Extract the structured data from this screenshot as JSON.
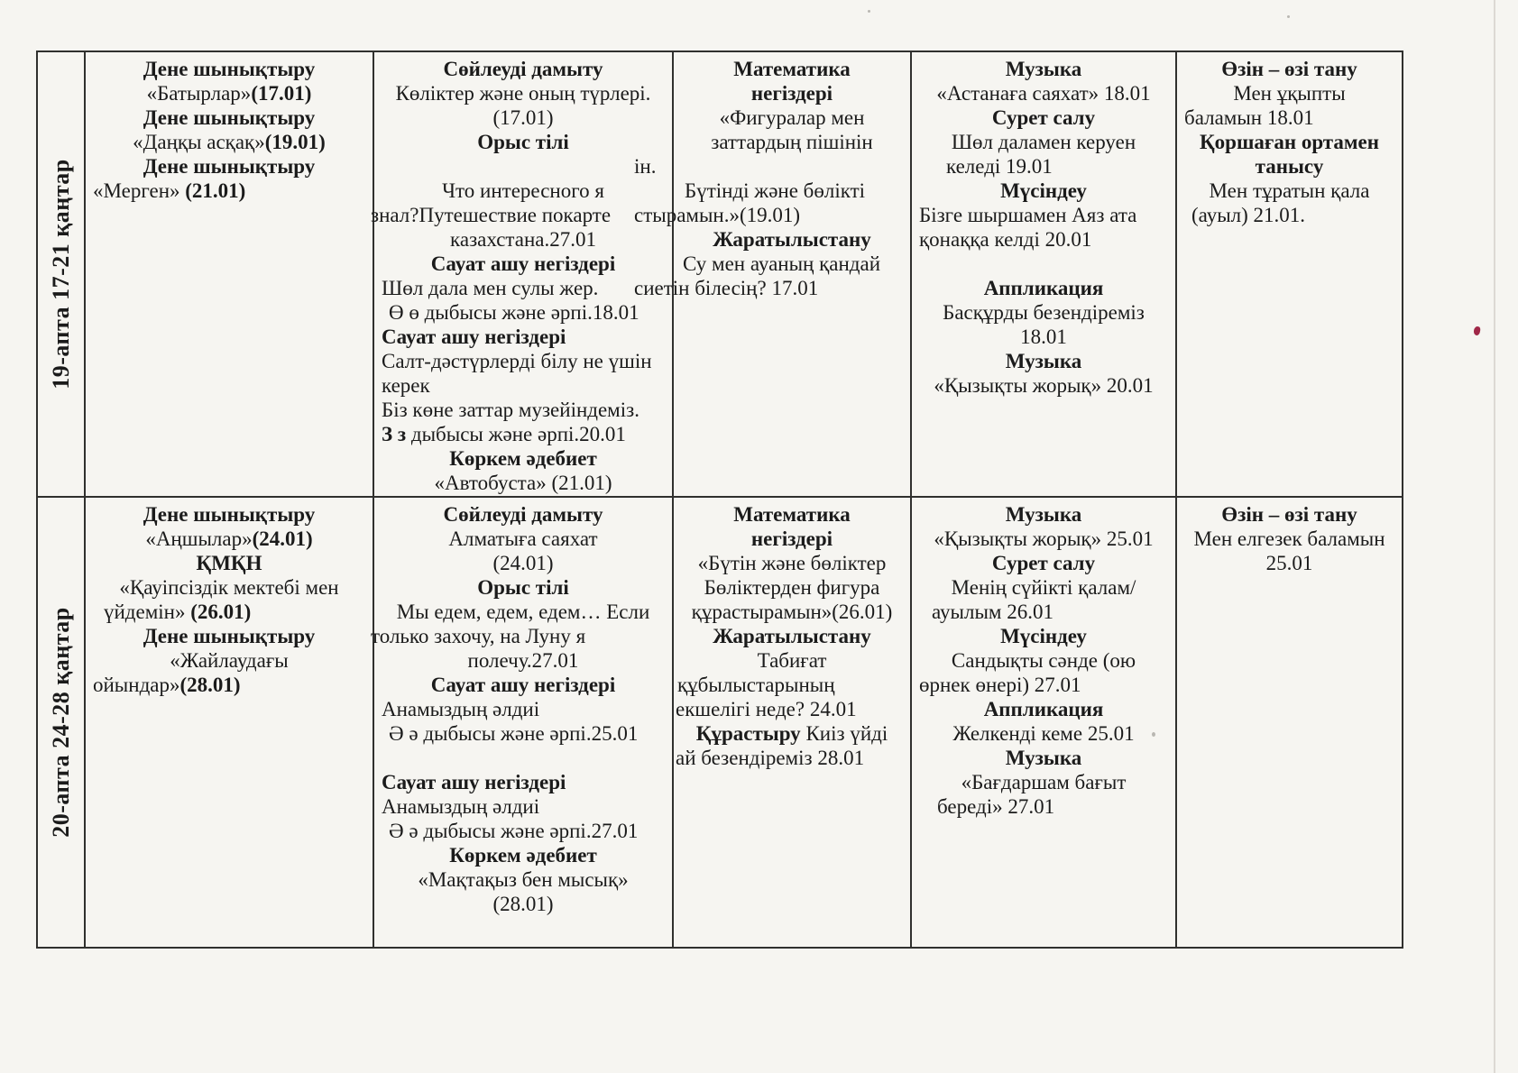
{
  "colors": {
    "paper": "#f6f5f1",
    "ink": "#1b1b1b",
    "line": "#30302e",
    "red_mark": "#a02848"
  },
  "table": {
    "rows": [
      {
        "week_label": "19-апта 17-21 қаңтар",
        "cells": [
          {
            "lines": [
              {
                "text": "Дене шынықтыру",
                "bold": true,
                "align": "center"
              },
              {
                "segments": [
                  {
                    "text": "«Батырлар»",
                    "bold": false
                  },
                  {
                    "text": "(17.01)",
                    "bold": true
                  }
                ],
                "align": "center"
              },
              {
                "text": "Дене шынықтыру",
                "bold": true,
                "align": "center"
              },
              {
                "segments": [
                  {
                    "text": "«Даңқы асқақ»",
                    "bold": false
                  },
                  {
                    "text": "(19.01)",
                    "bold": true
                  }
                ],
                "align": "center"
              },
              {
                "text": "Дене шынықтыру",
                "bold": true,
                "align": "center"
              },
              {
                "segments": [
                  {
                    "text": "«Мерген» ",
                    "bold": false
                  },
                  {
                    "text": "(21.01)",
                    "bold": true
                  }
                ],
                "align": "left"
              }
            ]
          },
          {
            "lines": [
              {
                "text": "Сөйлеуді дамыту",
                "bold": true,
                "align": "center"
              },
              {
                "text": "Көліктер және оның түрлері.",
                "align": "center"
              },
              {
                "text": "(17.01)",
                "align": "center"
              },
              {
                "text": "Орыс тілі",
                "bold": true,
                "align": "center"
              },
              {
                "text": ""
              },
              {
                "text": "Что интересного я",
                "align": "center"
              },
              {
                "text": "знал?Путешествие покарте",
                "align": "left",
                "indent": -12
              },
              {
                "text": "казахстана.27.01",
                "align": "center"
              },
              {
                "text": "Сауат ашу негіздері",
                "bold": true,
                "align": "center"
              },
              {
                "text": "Шөл дала мен сулы жер.",
                "align": "left"
              },
              {
                "text": "Ө ө дыбысы және әрпі.18.01",
                "align": "left",
                "indent": 8
              },
              {
                "text": "Сауат ашу негіздері",
                "bold": true,
                "align": "left"
              },
              {
                "text": "Салт-дәстүрлерді білу не үшін",
                "align": "left"
              },
              {
                "text": "керек",
                "align": "left"
              },
              {
                "text": "Біз көне заттар музейіндеміз.",
                "align": "left"
              },
              {
                "segments": [
                  {
                    "text": "З з",
                    "bold": true
                  },
                  {
                    "text": " дыбысы және әрпі.20.01",
                    "bold": false
                  }
                ],
                "align": "left"
              },
              {
                "text": "Көркем әдебиет",
                "bold": true,
                "align": "center"
              },
              {
                "text": "«Автобуста» (21.01)",
                "align": "center"
              }
            ]
          },
          {
            "lines": [
              {
                "text": "Математика",
                "bold": true,
                "align": "center"
              },
              {
                "text": "негіздері",
                "bold": true,
                "align": "center"
              },
              {
                "text": "«Фигуралар мен",
                "align": "center"
              },
              {
                "text": "заттардың пішінін",
                "align": "center"
              },
              {
                "text": "ін.",
                "align": "left",
                "indent": -52
              },
              {
                "text": "Бүтінді және бөлікті",
                "align": "left",
                "indent": 4
              },
              {
                "text": "стырамын.»(19.01)",
                "align": "left",
                "indent": -52
              },
              {
                "text": "Жаратылыстану",
                "bold": true,
                "align": "center"
              },
              {
                "text": "Су мен ауаның қандай",
                "align": "left",
                "indent": 2
              },
              {
                "text": "сиетін білесің? 17.01",
                "align": "left",
                "indent": -52
              }
            ]
          },
          {
            "lines": [
              {
                "text": "Музыка",
                "bold": true,
                "align": "center"
              },
              {
                "text": "«Астанаға саяхат» 18.01",
                "align": "center"
              },
              {
                "text": "Сурет салу",
                "bold": true,
                "align": "center"
              },
              {
                "text": "Шөл даламен керуен",
                "align": "center"
              },
              {
                "text": "келеді 19.01",
                "align": "left",
                "indent": 30
              },
              {
                "text": "Мүсіндеу",
                "bold": true,
                "align": "center"
              },
              {
                "text": "Бізге шыршамен Аяз ата",
                "align": "left"
              },
              {
                "text": "қонаққа келді 20.01",
                "align": "left"
              },
              {
                "text": ""
              },
              {
                "text": "Аппликация",
                "bold": true,
                "align": "center"
              },
              {
                "text": "Басқұрды безендіреміз",
                "align": "center"
              },
              {
                "text": "18.01",
                "align": "center"
              },
              {
                "text": "Музыка",
                "bold": true,
                "align": "center"
              },
              {
                "text": "«Қызықты жорық» 20.01",
                "align": "center"
              }
            ]
          },
          {
            "lines": [
              {
                "text": "Өзін – өзі тану",
                "bold": true,
                "align": "center"
              },
              {
                "text": "Мен ұқыпты",
                "align": "center"
              },
              {
                "text": "баламын  18.01",
                "align": "left"
              },
              {
                "text": "Қоршаған ортамен",
                "bold": true,
                "align": "center"
              },
              {
                "text": "танысу",
                "bold": true,
                "align": "center"
              },
              {
                "text": "Мен тұратын қала",
                "align": "center"
              },
              {
                "text": "(ауыл) 21.01.",
                "align": "left",
                "indent": 8
              }
            ]
          }
        ]
      },
      {
        "week_label": "20-апта 24-28 қаңтар",
        "cells": [
          {
            "lines": [
              {
                "text": "Дене шынықтыру",
                "bold": true,
                "align": "center"
              },
              {
                "segments": [
                  {
                    "text": "«Аңшылар»",
                    "bold": false
                  },
                  {
                    "text": "(24.01)",
                    "bold": true
                  }
                ],
                "align": "center"
              },
              {
                "text": "ҚМҚН",
                "bold": true,
                "align": "center"
              },
              {
                "text": "«Қауіпсіздік мектебі мен",
                "align": "center"
              },
              {
                "segments": [
                  {
                    "text": "үйдемін» ",
                    "bold": false
                  },
                  {
                    "text": "(26.01)",
                    "bold": true
                  }
                ],
                "align": "left",
                "indent": 12
              },
              {
                "text": "Дене шынықтыру",
                "bold": true,
                "align": "center"
              },
              {
                "text": "«Жайлаудағы",
                "align": "center"
              },
              {
                "segments": [
                  {
                    "text": "ойындар»",
                    "bold": false
                  },
                  {
                    "text": "(28.01)",
                    "bold": true
                  }
                ],
                "align": "left"
              }
            ]
          },
          {
            "lines": [
              {
                "text": "Сөйлеуді дамыту",
                "bold": true,
                "align": "center"
              },
              {
                "text": "Алматыға саяхат",
                "align": "center"
              },
              {
                "text": "(24.01)",
                "align": "center"
              },
              {
                "text": "Орыс тілі",
                "bold": true,
                "align": "center"
              },
              {
                "text": "Мы едем, едем, едем… Если",
                "align": "center"
              },
              {
                "text": "только захочу, на Луну я",
                "align": "left",
                "indent": -12
              },
              {
                "text": "полечу.27.01",
                "align": "center"
              },
              {
                "text": "Сауат ашу негіздері",
                "bold": true,
                "align": "center"
              },
              {
                "text": "Анамыздың әлдиі",
                "align": "left"
              },
              {
                "text": "Ә ә дыбысы және әрпі.25.01",
                "align": "left",
                "indent": 8
              },
              {
                "text": ""
              },
              {
                "text": "Сауат ашу негіздері",
                "bold": true,
                "align": "left"
              },
              {
                "text": "Анамыздың әлдиі",
                "align": "left"
              },
              {
                "text": "Ә ә дыбысы және әрпі.27.01",
                "align": "left",
                "indent": 8
              },
              {
                "text": "Көркем әдебиет",
                "bold": true,
                "align": "center"
              },
              {
                "text": "«Мақтақыз бен мысық»",
                "align": "center"
              },
              {
                "text": "(28.01)",
                "align": "center"
              }
            ]
          },
          {
            "lines": [
              {
                "text": "Математика",
                "bold": true,
                "align": "center"
              },
              {
                "text": "негіздері",
                "bold": true,
                "align": "center"
              },
              {
                "text": "«Бүтін және бөліктер",
                "align": "center"
              },
              {
                "text": "Бөліктерден фигура",
                "align": "center"
              },
              {
                "text": "құрастырамын»(26.01)",
                "align": "center"
              },
              {
                "text": "Жаратылыстану",
                "bold": true,
                "align": "center"
              },
              {
                "text": "Табиғат",
                "align": "center"
              },
              {
                "text": "құбылыстарының",
                "align": "left",
                "indent": -4
              },
              {
                "text": "екшелігі неде?  24.01",
                "align": "left",
                "indent": -6
              },
              {
                "segments": [
                  {
                    "text": "Құрастыру",
                    "bold": true
                  },
                  {
                    "text": " Киіз үйді",
                    "bold": false
                  }
                ],
                "align": "center"
              },
              {
                "text": "ай безендіреміз  28.01",
                "align": "left",
                "indent": -6
              }
            ]
          },
          {
            "lines": [
              {
                "text": "Музыка",
                "bold": true,
                "align": "center"
              },
              {
                "text": "«Қызықты жорық» 25.01",
                "align": "center"
              },
              {
                "text": "Сурет салу",
                "bold": true,
                "align": "center"
              },
              {
                "text": "Менің сүйікті қалам/",
                "align": "center"
              },
              {
                "text": "ауылым 26.01",
                "align": "left",
                "indent": 14
              },
              {
                "text": "Мүсіндеу",
                "bold": true,
                "align": "center"
              },
              {
                "text": "Сандықты сәнде (ою",
                "align": "center"
              },
              {
                "text": "өрнек өнері) 27.01",
                "align": "left"
              },
              {
                "text": "Аппликация",
                "bold": true,
                "align": "center"
              },
              {
                "text": "Желкенді  кеме 25.01",
                "align": "center"
              },
              {
                "text": "Музыка",
                "bold": true,
                "align": "center"
              },
              {
                "text": "«Бағдаршам бағыт",
                "align": "center"
              },
              {
                "text": "береді» 27.01",
                "align": "left",
                "indent": 20
              }
            ]
          },
          {
            "lines": [
              {
                "text": "Өзін – өзі тану",
                "bold": true,
                "align": "center"
              },
              {
                "text": "Мен елгезек баламын",
                "align": "center"
              },
              {
                "text": "25.01",
                "align": "center"
              }
            ]
          }
        ]
      }
    ]
  }
}
